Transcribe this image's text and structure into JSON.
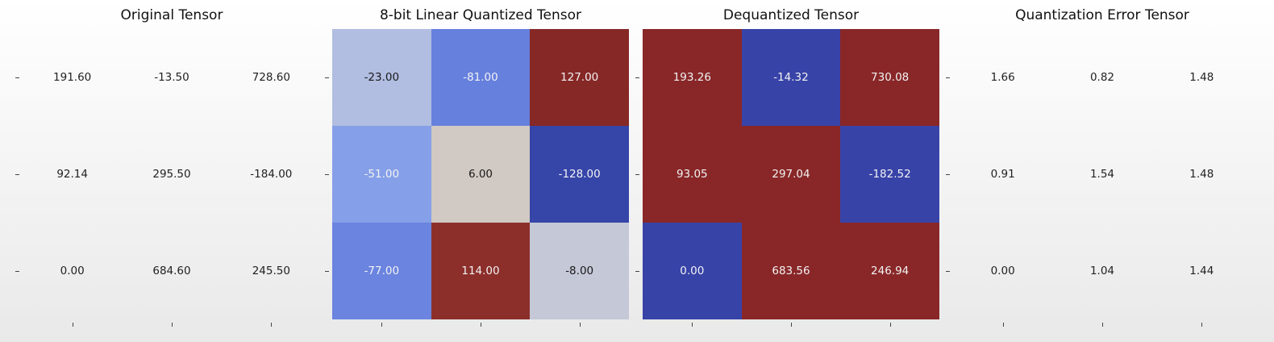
{
  "chart_data": [
    {
      "type": "table",
      "title": "Original Tensor",
      "values": [
        [
          191.6,
          -13.5,
          728.6
        ],
        [
          92.14,
          295.5,
          -184.0
        ],
        [
          0.0,
          684.6,
          245.5
        ]
      ],
      "labels": [
        [
          "191.60",
          "-13.50",
          "728.60"
        ],
        [
          "92.14",
          "295.50",
          "-184.00"
        ],
        [
          "0.00",
          "684.60",
          "245.50"
        ]
      ],
      "colored": false
    },
    {
      "type": "heatmap",
      "title": "8-bit Linear Quantized Tensor",
      "colormap": "coolwarm",
      "vmin": -128,
      "vmax": 127,
      "values": [
        [
          -23,
          -81,
          127
        ],
        [
          -51,
          6,
          -128
        ],
        [
          -77,
          114,
          -8
        ]
      ],
      "labels": [
        [
          "-23.00",
          "-81.00",
          "127.00"
        ],
        [
          "-51.00",
          "6.00",
          "-128.00"
        ],
        [
          "-77.00",
          "114.00",
          "-8.00"
        ]
      ],
      "colored": true
    },
    {
      "type": "heatmap",
      "title": "Dequantized Tensor",
      "colormap": "coolwarm",
      "vmin": 0,
      "vmax": 1,
      "values": [
        [
          193.26,
          -14.32,
          730.08
        ],
        [
          93.05,
          297.04,
          -182.52
        ],
        [
          0.0,
          683.56,
          246.94
        ]
      ],
      "labels": [
        [
          "193.26",
          "-14.32",
          "730.08"
        ],
        [
          "93.05",
          "297.04",
          "-182.52"
        ],
        [
          "0.00",
          "683.56",
          "246.94"
        ]
      ],
      "colored": true
    },
    {
      "type": "table",
      "title": "Quantization Error Tensor",
      "values": [
        [
          1.66,
          0.82,
          1.48
        ],
        [
          0.91,
          1.54,
          1.48
        ],
        [
          0.0,
          1.04,
          1.44
        ]
      ],
      "labels": [
        [
          "1.66",
          "0.82",
          "1.48"
        ],
        [
          "0.91",
          "1.54",
          "1.48"
        ],
        [
          "0.00",
          "1.04",
          "1.44"
        ]
      ],
      "colored": false
    }
  ]
}
